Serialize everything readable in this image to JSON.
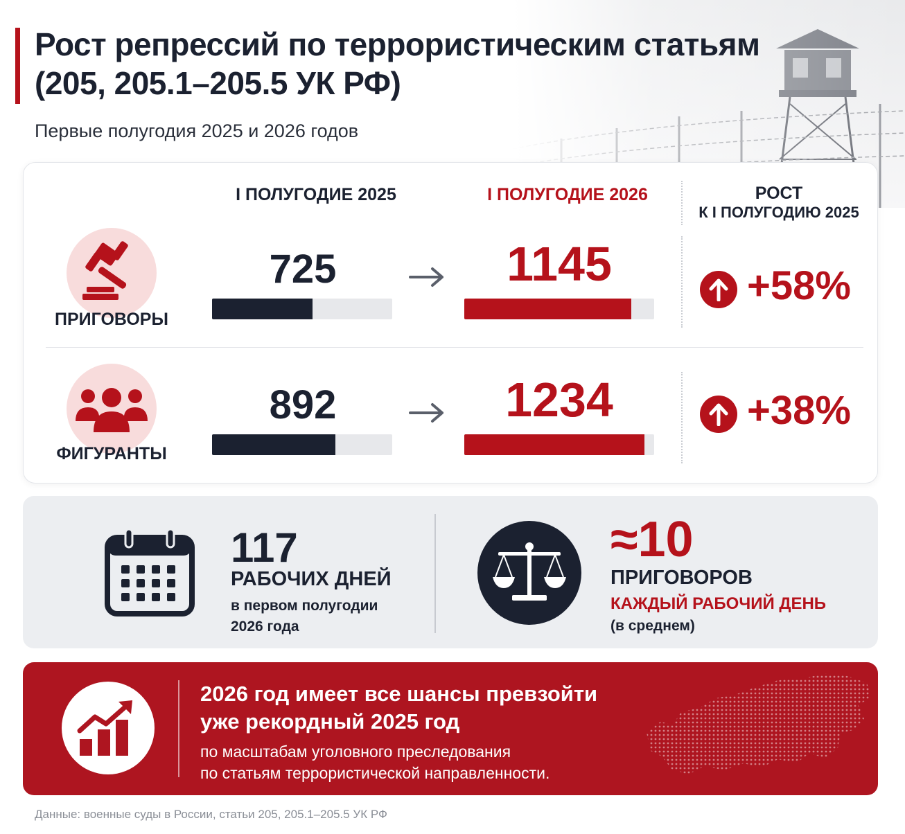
{
  "header": {
    "title_line1": "Рост репрессий по террористическим статьям",
    "title_line2": "(205, 205.1–205.5 УК РФ)",
    "subtitle": "Первые полугодия 2025 и 2026 годов"
  },
  "table": {
    "col_2025": "I ПОЛУГОДИЕ 2025",
    "col_2026": "I ПОЛУГОДИЕ 2026",
    "col_growth_line1": "РОСТ",
    "col_growth_line2": "К I ПОЛУГОДИЮ 2025",
    "rows": [
      {
        "label": "ПРИГОВОРЫ",
        "icon": "gavel-icon",
        "v2025": "725",
        "v2026": "1145",
        "growth": "+58%"
      },
      {
        "label": "ФИГУРАНТЫ",
        "icon": "people-icon",
        "v2025": "892",
        "v2026": "1234",
        "growth": "+38%"
      }
    ]
  },
  "chart_data": {
    "type": "bar",
    "categories": [
      "ПРИГОВОРЫ",
      "ФИГУРАНТЫ"
    ],
    "series": [
      {
        "name": "I ПОЛУГОДИЕ 2025",
        "values": [
          725,
          892
        ]
      },
      {
        "name": "I ПОЛУГОДИЕ 2026",
        "values": [
          1145,
          1234
        ]
      }
    ],
    "growth": [
      "+58%",
      "+38%"
    ]
  },
  "stats": {
    "workdays_number": "117",
    "workdays_unit": "РАБОЧИХ ДНЕЙ",
    "workdays_note_line1": "в первом полугодии",
    "workdays_note_line2": "2026 года",
    "daily_number": "≈10",
    "daily_unit": "ПРИГОВОРОВ",
    "daily_red": "КАЖДЫЙ РАБОЧИЙ ДЕНЬ",
    "daily_note": "(в среднем)"
  },
  "banner": {
    "headline_line1": "2026 год имеет все шансы превзойти",
    "headline_line2": "уже рекордный 2025 год",
    "sub_line1": "по масштабам уголовного преследования",
    "sub_line2": "по статьям террористической направленности."
  },
  "footer": {
    "source": "Данные: военные суды в России, статьи 205, 205.1–205.5 УК РФ"
  },
  "colors": {
    "accent_red": "#b5121b",
    "dark": "#1b2130",
    "banner_red": "#ae1520",
    "light_panel": "#eceef1"
  }
}
